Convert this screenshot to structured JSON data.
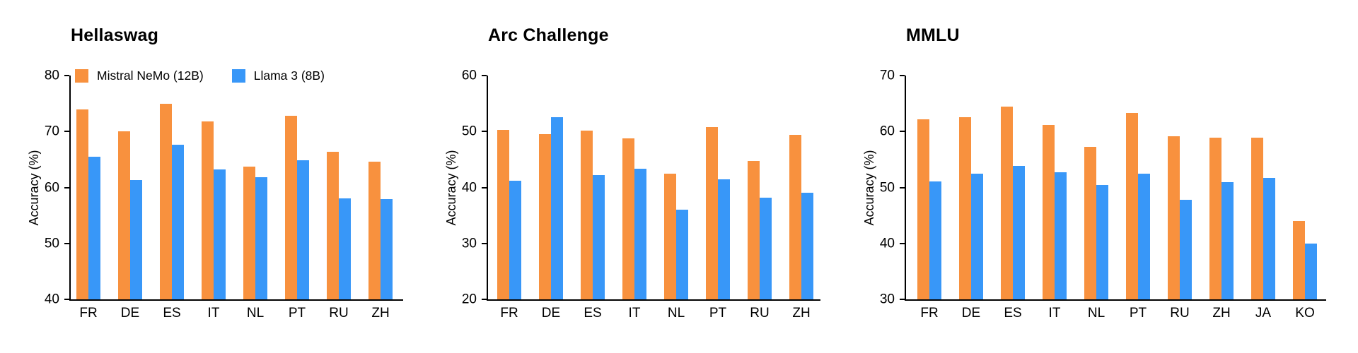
{
  "figure": {
    "description": "Multilingual benchmark accuracy comparison, three grouped bar charts"
  },
  "colors": {
    "mistral": "#F8913E",
    "llama": "#3897F8",
    "axis": "#000000",
    "text": "#000000",
    "background": "#FFFFFF"
  },
  "legend": {
    "items": [
      {
        "label": "Mistral NeMo (12B)",
        "series": "mistral"
      },
      {
        "label": "Llama 3 (8B)",
        "series": "llama"
      }
    ]
  },
  "chart_data": [
    {
      "type": "bar",
      "title": "Hellaswag",
      "xlabel": "",
      "ylabel": "Accuracy (%)",
      "ylim": [
        40,
        80
      ],
      "ytick_step": 10,
      "grid": false,
      "legend_position": "top-left-inside",
      "categories": [
        "FR",
        "DE",
        "ES",
        "IT",
        "NL",
        "PT",
        "RU",
        "ZH"
      ],
      "series": [
        {
          "name": "Mistral NeMo (12B)",
          "color": "#F8913E",
          "values": [
            74.0,
            70.0,
            75.0,
            71.8,
            63.7,
            72.8,
            66.4,
            64.6
          ]
        },
        {
          "name": "Llama 3 (8B)",
          "color": "#3897F8",
          "values": [
            65.5,
            61.3,
            67.6,
            63.2,
            61.8,
            64.9,
            58.0,
            57.9
          ]
        }
      ]
    },
    {
      "type": "bar",
      "title": "Arc Challenge",
      "xlabel": "",
      "ylabel": "Accuracy (%)",
      "ylim": [
        20,
        60
      ],
      "ytick_step": 10,
      "grid": false,
      "legend_position": "none",
      "categories": [
        "FR",
        "DE",
        "ES",
        "IT",
        "NL",
        "PT",
        "RU",
        "ZH"
      ],
      "series": [
        {
          "name": "Mistral NeMo (12B)",
          "color": "#F8913E",
          "values": [
            50.3,
            49.5,
            50.1,
            48.8,
            42.4,
            50.8,
            44.7,
            49.4
          ]
        },
        {
          "name": "Llama 3 (8B)",
          "color": "#3897F8",
          "values": [
            41.2,
            52.5,
            42.2,
            43.4,
            36.0,
            41.4,
            38.2,
            39.0
          ]
        }
      ]
    },
    {
      "type": "bar",
      "title": "MMLU",
      "xlabel": "",
      "ylabel": "Accuracy (%)",
      "ylim": [
        30,
        70
      ],
      "ytick_step": 10,
      "grid": false,
      "legend_position": "none",
      "categories": [
        "FR",
        "DE",
        "ES",
        "IT",
        "NL",
        "PT",
        "RU",
        "ZH",
        "JA",
        "KO"
      ],
      "series": [
        {
          "name": "Mistral NeMo (12B)",
          "color": "#F8913E",
          "values": [
            62.2,
            62.6,
            64.5,
            61.2,
            57.2,
            63.3,
            59.1,
            58.9,
            58.9,
            44.0
          ]
        },
        {
          "name": "Llama 3 (8B)",
          "color": "#3897F8",
          "values": [
            51.1,
            52.5,
            53.8,
            52.7,
            50.5,
            52.4,
            47.8,
            51.0,
            51.7,
            40.0
          ]
        }
      ]
    }
  ]
}
